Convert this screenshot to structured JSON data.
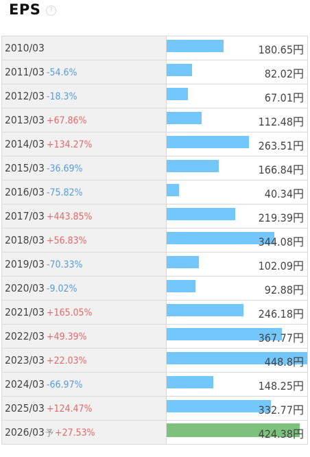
{
  "header": {
    "title": "EPS",
    "help": "?"
  },
  "max_value": 448.8,
  "rows": [
    {
      "date": "2010/03",
      "yoy": "",
      "sign": "",
      "forecast": "",
      "value": 180.65,
      "value_text": "180.65円"
    },
    {
      "date": "2011/03",
      "yoy": "-54.6%",
      "sign": "neg",
      "forecast": "",
      "value": 82.02,
      "value_text": "82.02円"
    },
    {
      "date": "2012/03",
      "yoy": "-18.3%",
      "sign": "neg",
      "forecast": "",
      "value": 67.01,
      "value_text": "67.01円"
    },
    {
      "date": "2013/03",
      "yoy": "+67.86%",
      "sign": "pos",
      "forecast": "",
      "value": 112.48,
      "value_text": "112.48円"
    },
    {
      "date": "2014/03",
      "yoy": "+134.27%",
      "sign": "pos",
      "forecast": "",
      "value": 263.51,
      "value_text": "263.51円"
    },
    {
      "date": "2015/03",
      "yoy": "-36.69%",
      "sign": "neg",
      "forecast": "",
      "value": 166.84,
      "value_text": "166.84円"
    },
    {
      "date": "2016/03",
      "yoy": "-75.82%",
      "sign": "neg",
      "forecast": "",
      "value": 40.34,
      "value_text": "40.34円"
    },
    {
      "date": "2017/03",
      "yoy": "+443.85%",
      "sign": "pos",
      "forecast": "",
      "value": 219.39,
      "value_text": "219.39円"
    },
    {
      "date": "2018/03",
      "yoy": "+56.83%",
      "sign": "pos",
      "forecast": "",
      "value": 344.08,
      "value_text": "344.08円"
    },
    {
      "date": "2019/03",
      "yoy": "-70.33%",
      "sign": "neg",
      "forecast": "",
      "value": 102.09,
      "value_text": "102.09円"
    },
    {
      "date": "2020/03",
      "yoy": "-9.02%",
      "sign": "neg",
      "forecast": "",
      "value": 92.88,
      "value_text": "92.88円"
    },
    {
      "date": "2021/03",
      "yoy": "+165.05%",
      "sign": "pos",
      "forecast": "",
      "value": 246.18,
      "value_text": "246.18円"
    },
    {
      "date": "2022/03",
      "yoy": "+49.39%",
      "sign": "pos",
      "forecast": "",
      "value": 367.77,
      "value_text": "367.77円"
    },
    {
      "date": "2023/03",
      "yoy": "+22.03%",
      "sign": "pos",
      "forecast": "",
      "value": 448.8,
      "value_text": "448.8円"
    },
    {
      "date": "2024/03",
      "yoy": "-66.97%",
      "sign": "neg",
      "forecast": "",
      "value": 148.25,
      "value_text": "148.25円"
    },
    {
      "date": "2025/03",
      "yoy": "+124.47%",
      "sign": "pos",
      "forecast": "",
      "value": 332.77,
      "value_text": "332.77円"
    },
    {
      "date": "2026/03",
      "yoy": "+27.53%",
      "sign": "pos",
      "forecast": "予",
      "value": 424.38,
      "value_text": "424.38円"
    }
  ],
  "colors": {
    "bar": "#74c7fb",
    "forecast_bar": "#7ec17c",
    "positive": "#e06b6b",
    "negative": "#5b9bd5"
  }
}
